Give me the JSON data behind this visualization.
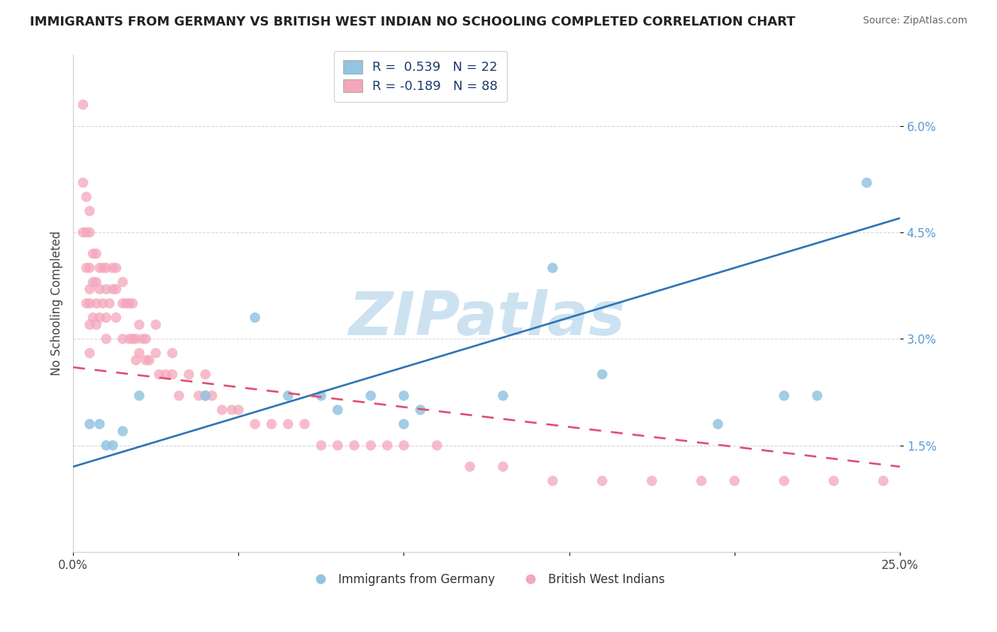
{
  "title": "IMMIGRANTS FROM GERMANY VS BRITISH WEST INDIAN NO SCHOOLING COMPLETED CORRELATION CHART",
  "source": "Source: ZipAtlas.com",
  "ylabel": "No Schooling Completed",
  "x_min": 0.0,
  "x_max": 0.25,
  "y_min": 0.0,
  "y_max": 0.07,
  "y_ticks": [
    0.015,
    0.03,
    0.045,
    0.06
  ],
  "y_tick_labels": [
    "1.5%",
    "3.0%",
    "4.5%",
    "6.0%"
  ],
  "blue_R": 0.539,
  "blue_N": 22,
  "pink_R": -0.189,
  "pink_N": 88,
  "blue_color": "#92c5e0",
  "pink_color": "#f4a6bb",
  "blue_line_color": "#2e75b6",
  "pink_line_color": "#e05070",
  "watermark": "ZIPatlas",
  "legend_label_blue": "Immigrants from Germany",
  "legend_label_pink": "British West Indians",
  "blue_line_x0": 0.0,
  "blue_line_y0": 0.012,
  "blue_line_x1": 0.25,
  "blue_line_y1": 0.047,
  "pink_line_x0": 0.0,
  "pink_line_y0": 0.026,
  "pink_line_x1": 0.25,
  "pink_line_y1": 0.012,
  "blue_scatter_x": [
    0.005,
    0.008,
    0.01,
    0.012,
    0.015,
    0.02,
    0.04,
    0.055,
    0.065,
    0.075,
    0.08,
    0.09,
    0.1,
    0.1,
    0.105,
    0.13,
    0.145,
    0.16,
    0.195,
    0.215,
    0.225,
    0.24
  ],
  "blue_scatter_y": [
    0.018,
    0.018,
    0.015,
    0.015,
    0.017,
    0.022,
    0.022,
    0.033,
    0.022,
    0.022,
    0.02,
    0.022,
    0.022,
    0.018,
    0.02,
    0.022,
    0.04,
    0.025,
    0.018,
    0.022,
    0.022,
    0.052
  ],
  "pink_scatter_x": [
    0.003,
    0.003,
    0.003,
    0.004,
    0.004,
    0.004,
    0.004,
    0.005,
    0.005,
    0.005,
    0.005,
    0.005,
    0.005,
    0.005,
    0.006,
    0.006,
    0.006,
    0.007,
    0.007,
    0.007,
    0.007,
    0.008,
    0.008,
    0.008,
    0.009,
    0.009,
    0.01,
    0.01,
    0.01,
    0.01,
    0.011,
    0.012,
    0.012,
    0.013,
    0.013,
    0.013,
    0.015,
    0.015,
    0.015,
    0.016,
    0.017,
    0.017,
    0.018,
    0.018,
    0.019,
    0.019,
    0.02,
    0.02,
    0.021,
    0.022,
    0.022,
    0.023,
    0.025,
    0.025,
    0.026,
    0.028,
    0.03,
    0.03,
    0.032,
    0.035,
    0.038,
    0.04,
    0.04,
    0.042,
    0.045,
    0.048,
    0.05,
    0.055,
    0.06,
    0.065,
    0.07,
    0.075,
    0.08,
    0.085,
    0.09,
    0.095,
    0.1,
    0.11,
    0.12,
    0.13,
    0.145,
    0.16,
    0.175,
    0.19,
    0.2,
    0.215,
    0.23,
    0.245
  ],
  "pink_scatter_y": [
    0.063,
    0.052,
    0.045,
    0.05,
    0.045,
    0.04,
    0.035,
    0.048,
    0.045,
    0.04,
    0.037,
    0.035,
    0.032,
    0.028,
    0.042,
    0.038,
    0.033,
    0.042,
    0.038,
    0.035,
    0.032,
    0.04,
    0.037,
    0.033,
    0.04,
    0.035,
    0.04,
    0.037,
    0.033,
    0.03,
    0.035,
    0.04,
    0.037,
    0.04,
    0.037,
    0.033,
    0.038,
    0.035,
    0.03,
    0.035,
    0.035,
    0.03,
    0.035,
    0.03,
    0.03,
    0.027,
    0.032,
    0.028,
    0.03,
    0.03,
    0.027,
    0.027,
    0.032,
    0.028,
    0.025,
    0.025,
    0.028,
    0.025,
    0.022,
    0.025,
    0.022,
    0.025,
    0.022,
    0.022,
    0.02,
    0.02,
    0.02,
    0.018,
    0.018,
    0.018,
    0.018,
    0.015,
    0.015,
    0.015,
    0.015,
    0.015,
    0.015,
    0.015,
    0.012,
    0.012,
    0.01,
    0.01,
    0.01,
    0.01,
    0.01,
    0.01,
    0.01,
    0.01
  ]
}
